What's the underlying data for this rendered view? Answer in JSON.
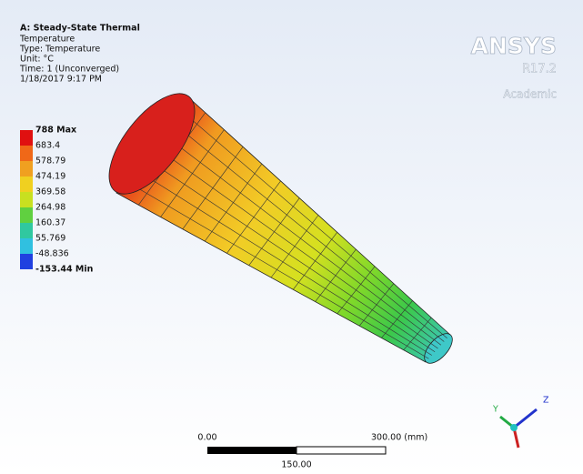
{
  "header": {
    "title": "A: Steady-State Thermal",
    "lines": [
      "Temperature",
      "Type: Temperature",
      "Unit: °C",
      "Time: 1 (Unconverged)",
      "1/18/2017 9:17 PM"
    ]
  },
  "legend": {
    "labels": [
      "788 Max",
      "683.4",
      "578.79",
      "474.19",
      "369.58",
      "264.98",
      "160.37",
      "55.769",
      "-48.836",
      "-153.44 Min"
    ]
  },
  "logo": {
    "name": "ANSYS",
    "version": "R17.2",
    "edition": "Academic"
  },
  "scale_bar": {
    "start": "0.00",
    "end": "300.00 (mm)",
    "middle": "150.00"
  },
  "triad": {
    "y": "Y",
    "z": "Z"
  }
}
